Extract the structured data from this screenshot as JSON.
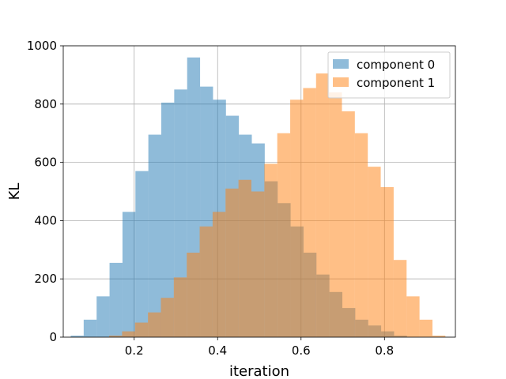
{
  "chart_data": {
    "type": "histogram",
    "title": "",
    "xlabel": "iteration",
    "ylabel": "KL",
    "xlim": [
      0.03,
      0.97
    ],
    "ylim": [
      0,
      1000
    ],
    "xticks": [
      0.2,
      0.4,
      0.6,
      0.8
    ],
    "yticks": [
      0,
      200,
      400,
      600,
      800,
      1000
    ],
    "xtick_labels": [
      "0.2",
      "0.4",
      "0.6",
      "0.8"
    ],
    "ytick_labels": [
      "0",
      "200",
      "400",
      "600",
      "800",
      "1000"
    ],
    "grid": true,
    "legend_position": "top-right",
    "alpha": 0.5,
    "series": [
      {
        "name": "component 0",
        "color": "#1f77b4",
        "bin_edges": [
          0.048,
          0.079,
          0.11,
          0.141,
          0.172,
          0.203,
          0.234,
          0.265,
          0.296,
          0.327,
          0.358,
          0.389,
          0.42,
          0.451,
          0.482,
          0.513,
          0.544,
          0.575,
          0.606,
          0.637,
          0.668,
          0.699,
          0.73,
          0.761,
          0.792,
          0.823,
          0.854
        ],
        "values": [
          5,
          60,
          140,
          255,
          430,
          570,
          695,
          805,
          850,
          960,
          860,
          815,
          760,
          695,
          665,
          535,
          460,
          380,
          290,
          215,
          155,
          100,
          60,
          40,
          20,
          5
        ]
      },
      {
        "name": "component 1",
        "color": "#ff7f0e",
        "bin_edges": [
          0.14,
          0.171,
          0.202,
          0.233,
          0.264,
          0.295,
          0.326,
          0.357,
          0.388,
          0.419,
          0.45,
          0.481,
          0.512,
          0.543,
          0.574,
          0.605,
          0.636,
          0.667,
          0.698,
          0.729,
          0.76,
          0.791,
          0.822,
          0.853,
          0.884,
          0.915,
          0.946
        ],
        "values": [
          5,
          20,
          50,
          85,
          135,
          205,
          290,
          380,
          430,
          510,
          540,
          500,
          595,
          700,
          815,
          855,
          905,
          840,
          775,
          700,
          585,
          515,
          265,
          140,
          60,
          5
        ]
      }
    ]
  }
}
